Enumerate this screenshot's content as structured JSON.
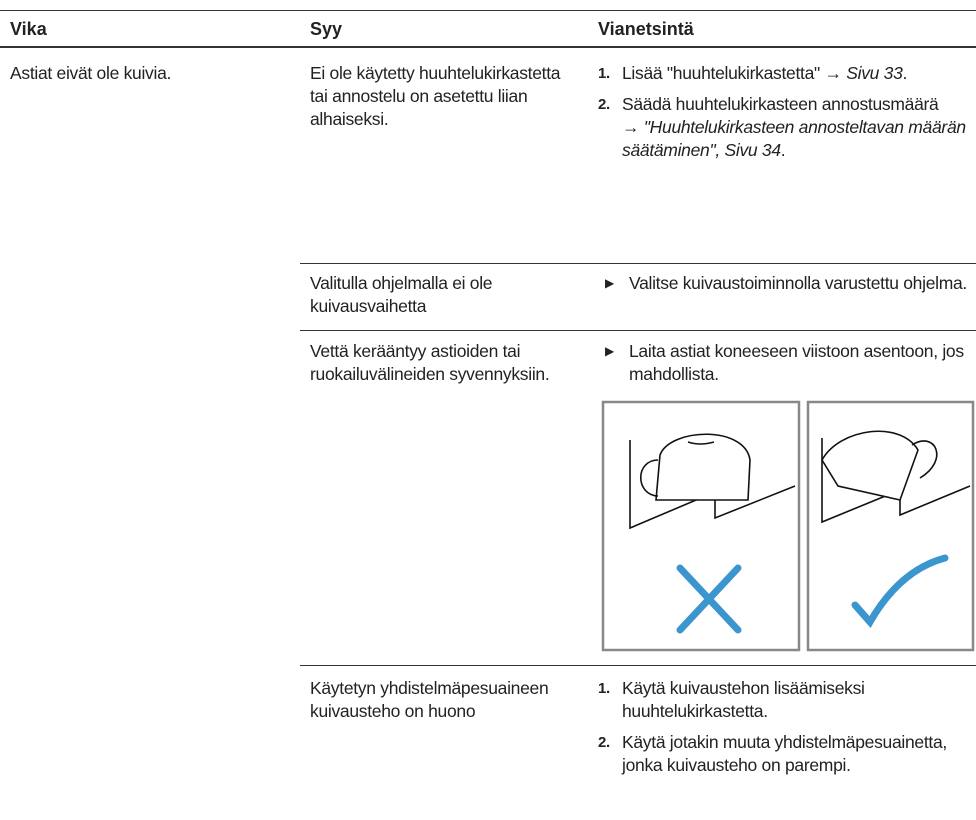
{
  "header": {
    "fault": "Vika",
    "cause": "Syy",
    "remedy": "Vianetsintä"
  },
  "fault": "Astiat eivät ole kuivia.",
  "causes": [
    {
      "cause": "Ei ole käytetty huuhtelukirkastetta tai annostelu on asetettu liian alhaiseksi.",
      "steps": [
        {
          "num": "1.",
          "text": "Lisää \"huuhtelukirkastetta\" → ",
          "ref": "Sivu 33",
          "end": "."
        },
        {
          "num": "2.",
          "text": "Säädä huuhtelukirkasteen annostusmäärä",
          "ref": "→ \"Huuhtelukirkasteen annosteltavan määrän säätäminen\", Sivu 34",
          "end": "."
        }
      ]
    },
    {
      "cause": "Valitulla ohjelmalla ei ole kuivausvaihetta",
      "action": "Valitse kuivaustoiminnolla varustettu ohjelma."
    },
    {
      "cause": "Vettä kerääntyy astioiden tai ruokailuvälineiden syvennyksiin.",
      "action": "Laita astiat koneeseen viistoon asentoon, jos mahdollista."
    },
    {
      "cause": "Käytetyn yhdistelmäpesuaineen kuivausteho on huono",
      "steps": [
        {
          "num": "1.",
          "text": "Käytä kuivaustehon lisäämiseksi huuhtelukirkastetta."
        },
        {
          "num": "2.",
          "text": "Käytä jotakin muuta yhdistelmäpesuainetta, jonka kuivausteho on parempi."
        }
      ]
    }
  ]
}
